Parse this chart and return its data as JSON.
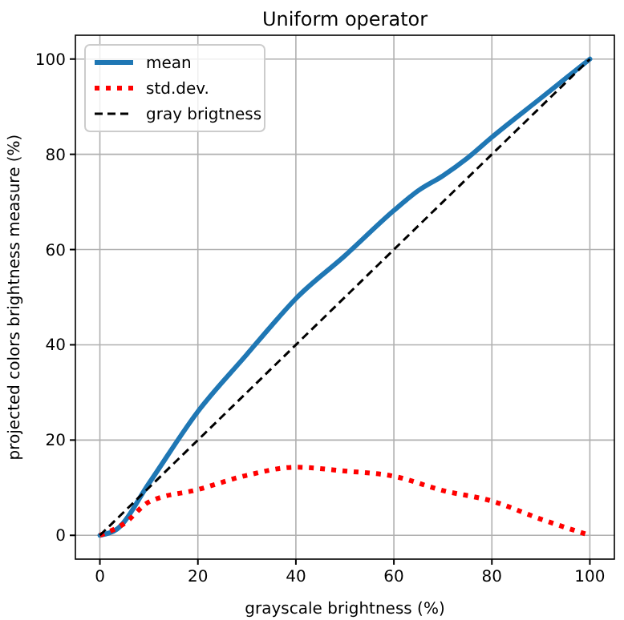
{
  "chart_data": {
    "type": "line",
    "title": "Uniform operator",
    "xlabel": "grayscale brightness (%)",
    "ylabel": "projected colors brightness measure (%)",
    "x": [
      0,
      3.5,
      10,
      20,
      30,
      35,
      40,
      50,
      60,
      65,
      70,
      75,
      80,
      90,
      100
    ],
    "series": [
      {
        "name": "mean",
        "color": "#1f77b4",
        "line_style": "solid",
        "values": [
          0,
          1.3,
          10.9,
          26,
          38,
          44,
          49.7,
          58.7,
          68.2,
          72.4,
          75.5,
          79.2,
          83.6,
          91.8,
          100
        ]
      },
      {
        "name": "std.dev.",
        "color": "#ff0000",
        "line_style": "dotted",
        "x": [
          0,
          5,
          10,
          20,
          30,
          40,
          50,
          60,
          70,
          80,
          90,
          100
        ],
        "values": [
          0,
          2.5,
          7,
          9.6,
          12.6,
          14.3,
          13.5,
          12.4,
          9.4,
          7.2,
          3.4,
          0
        ]
      },
      {
        "name": "gray brigtness",
        "color": "#000000",
        "line_style": "dashed",
        "x": [
          0,
          100
        ],
        "values": [
          0,
          100
        ]
      }
    ],
    "xlim": [
      -5,
      105
    ],
    "ylim": [
      -5,
      105
    ],
    "xticks": [
      0,
      20,
      40,
      60,
      80,
      100
    ],
    "yticks": [
      0,
      20,
      40,
      60,
      80,
      100
    ],
    "grid": true,
    "legend": "top left"
  }
}
